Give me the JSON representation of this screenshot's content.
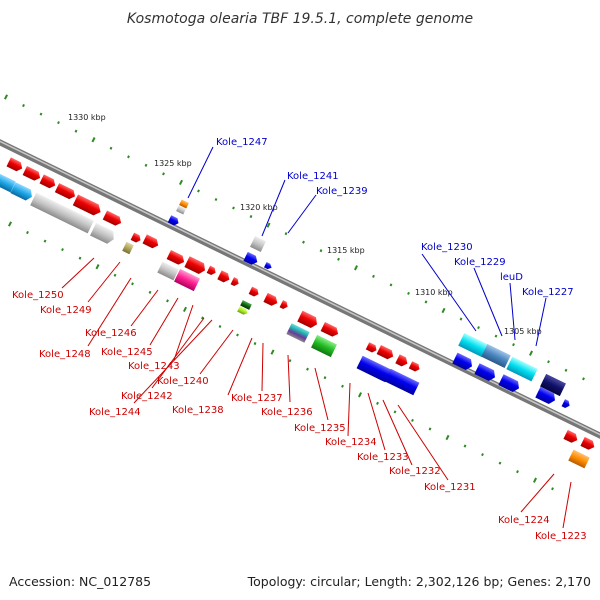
{
  "title": "Kosmotoga olearia TBF 19.5.1, complete genome",
  "footer": {
    "accession": "Accession: NC_012785",
    "topology": "Topology: circular; Length: 2,302,126 bp; Genes: 2,170"
  },
  "colors": {
    "forward_label": "#0000cc",
    "reverse_label": "#cc0000",
    "tick": "#2e8b22",
    "backbone": "#808080"
  },
  "scale": [
    {
      "name": "tick-1330",
      "text": "1330 kbp"
    },
    {
      "name": "tick-1325",
      "text": "1325 kbp"
    },
    {
      "name": "tick-1320",
      "text": "1320 kbp"
    },
    {
      "name": "tick-1315",
      "text": "1315 kbp"
    },
    {
      "name": "tick-1310",
      "text": "1310 kbp"
    },
    {
      "name": "tick-1305",
      "text": "1305 kbp"
    }
  ],
  "upper_labels": [
    {
      "text": "Kole_1247"
    },
    {
      "text": "Kole_1241"
    },
    {
      "text": "Kole_1239"
    },
    {
      "text": "Kole_1230"
    },
    {
      "text": "Kole_1229"
    },
    {
      "text": "leuD"
    },
    {
      "text": "Kole_1227"
    }
  ],
  "lower_labels": [
    {
      "text": "Kole_1250"
    },
    {
      "text": "Kole_1249"
    },
    {
      "text": "Kole_1246"
    },
    {
      "text": "Kole_1248"
    },
    {
      "text": "Kole_1245"
    },
    {
      "text": "Kole_1243"
    },
    {
      "text": "Kole_1240"
    },
    {
      "text": "Kole_1242"
    },
    {
      "text": "Kole_1244"
    },
    {
      "text": "Kole_1238"
    },
    {
      "text": "Kole_1237"
    },
    {
      "text": "Kole_1236"
    },
    {
      "text": "Kole_1235"
    },
    {
      "text": "Kole_1234"
    },
    {
      "text": "Kole_1233"
    },
    {
      "text": "Kole_1232"
    },
    {
      "text": "Kole_1231"
    },
    {
      "text": "Kole_1224"
    },
    {
      "text": "Kole_1223"
    }
  ]
}
